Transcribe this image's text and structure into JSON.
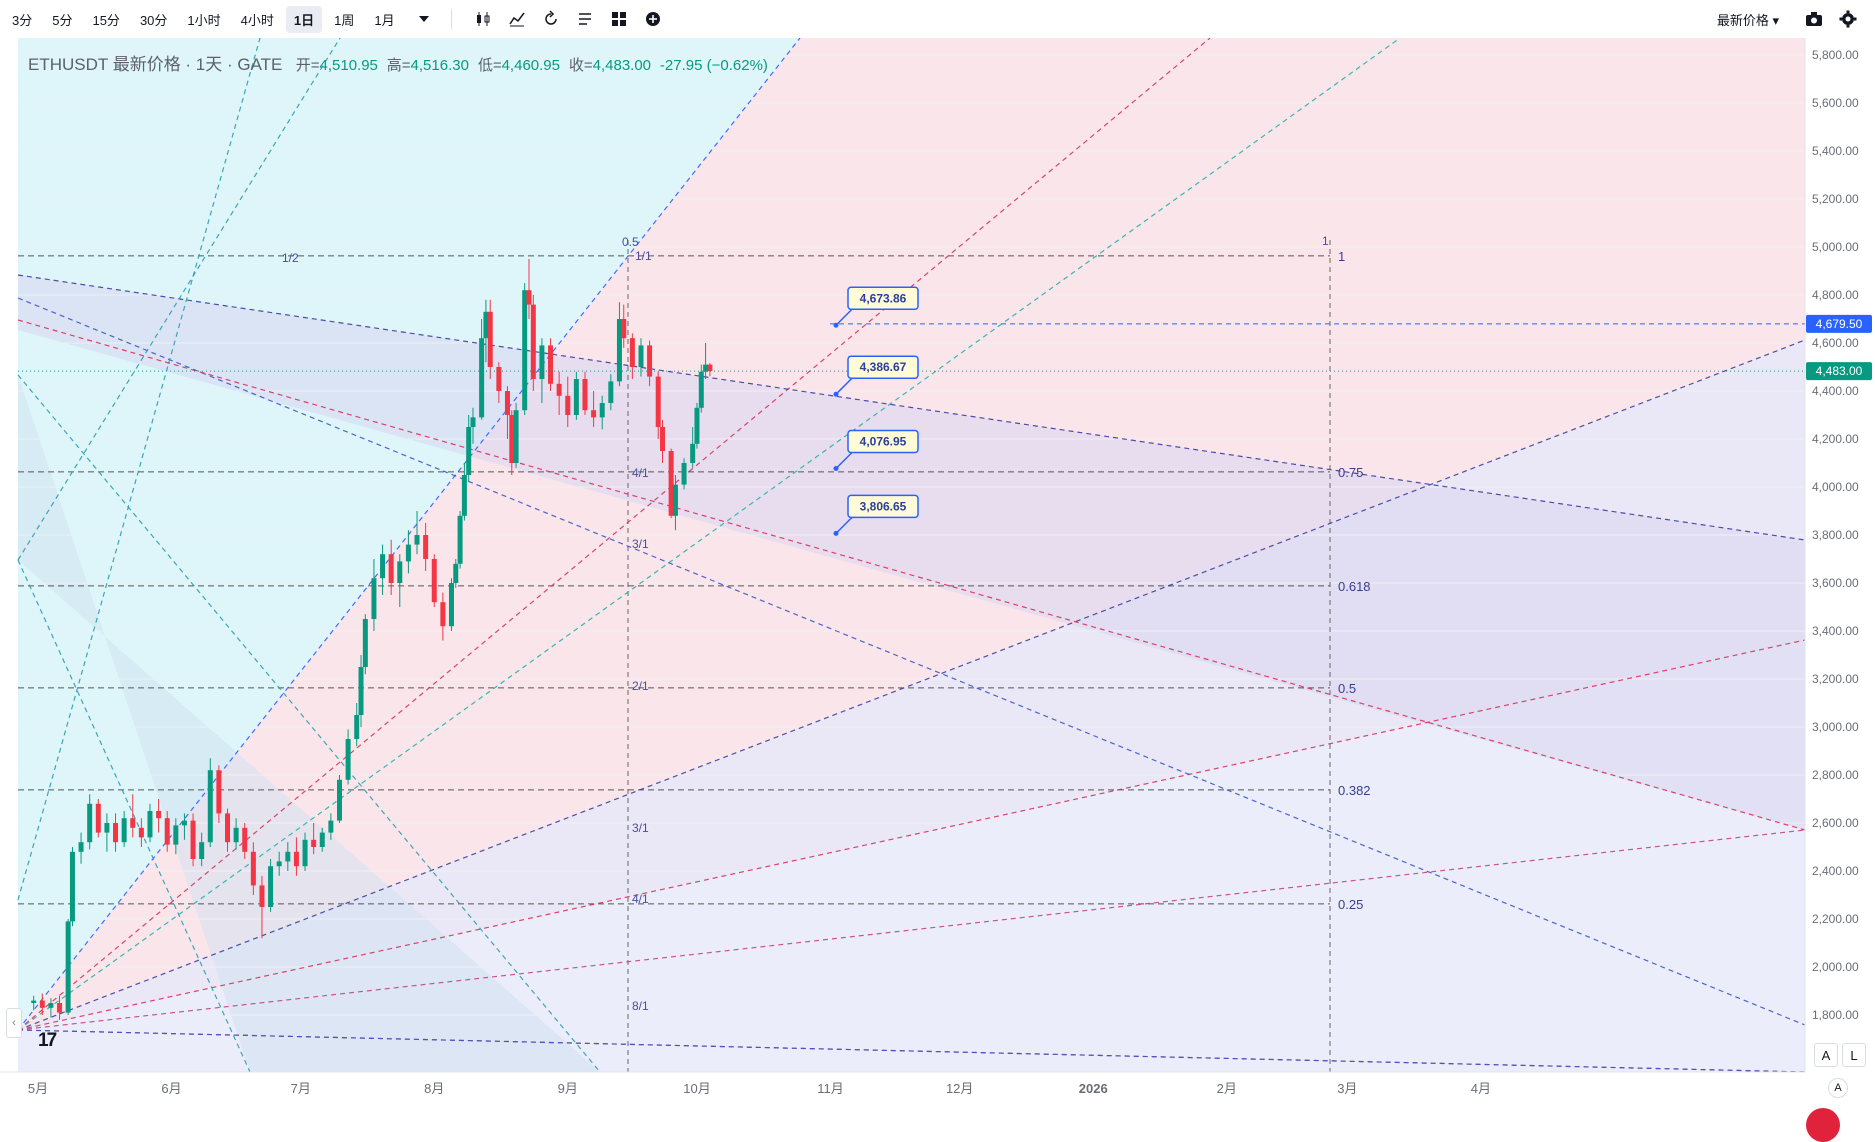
{
  "toolbar": {
    "timeframes": [
      "3分",
      "5分",
      "15分",
      "30分",
      "1小时",
      "4小时",
      "1日",
      "1周",
      "1月"
    ],
    "active_timeframe": "1日",
    "price_type": "最新价格 ▾"
  },
  "legend": {
    "symbol": "ETHUSDT 最新价格 · 1天 · GATE",
    "open_label": "开=",
    "open": "4,510.95",
    "high_label": "高=",
    "high": "4,516.30",
    "low_label": "低=",
    "low": "4,460.95",
    "close_label": "收=",
    "close": "4,483.00",
    "change": "-27.95 (−0.62%)"
  },
  "colors": {
    "up": "#089981",
    "down": "#f23645",
    "blue": "#2962ff",
    "accent_blue": "#3a5bd9"
  },
  "price_axis": [
    "5,800.00",
    "5,600.00",
    "5,400.00",
    "5,200.00",
    "5,000.00",
    "4,800.00",
    "4,600.00",
    "4,400.00",
    "4,200.00",
    "4,000.00",
    "3,800.00",
    "3,600.00",
    "3,400.00",
    "3,200.00",
    "3,000.00",
    "2,800.00",
    "2,600.00",
    "2,400.00",
    "2,200.00",
    "2,000.00",
    "1,800.00"
  ],
  "price_tags": [
    {
      "value": "4,679.50",
      "price": 4679.5,
      "color": "#2962ff"
    },
    {
      "value": "4,483.00",
      "price": 4483,
      "color": "#089981"
    }
  ],
  "time_axis": [
    "5月",
    "6月",
    "7月",
    "8月",
    "9月",
    "10月",
    "11月",
    "12月",
    "2026",
    "2月",
    "3月",
    "4月"
  ],
  "callouts": [
    {
      "text": "4,673.86",
      "price": 4673.86
    },
    {
      "text": "4,386.67",
      "price": 4386.67
    },
    {
      "text": "4,076.95",
      "price": 4076.95
    },
    {
      "text": "3,806.65",
      "price": 3806.65
    }
  ],
  "fib_levels": [
    {
      "label": "1",
      "price": 4963
    },
    {
      "label": "0.75",
      "price": 4063
    },
    {
      "label": "0.618",
      "price": 3588
    },
    {
      "label": "0.5",
      "price": 3163
    },
    {
      "label": "0.382",
      "price": 2738
    },
    {
      "label": "0.25",
      "price": 2263
    }
  ],
  "gann_labels": [
    "0.5",
    "1/2",
    "1/1",
    "4/1",
    "3/1",
    "2/1",
    "3/1",
    "4/1",
    "8/1",
    "1"
  ],
  "scale_buttons": [
    "A",
    "L"
  ],
  "bottom_button": "A",
  "chart_data": {
    "type": "candlestick",
    "symbol": "ETHUSDT",
    "interval": "1天",
    "ylim": [
      1600,
      5900
    ],
    "xlim": [
      "2025-04-29",
      "2026-04-30"
    ],
    "candles": [
      [
        "2025-04-30",
        1850,
        1880,
        1820,
        1860
      ],
      [
        "2025-05-02",
        1860,
        1890,
        1800,
        1830
      ],
      [
        "2025-05-04",
        1830,
        1870,
        1790,
        1850
      ],
      [
        "2025-05-06",
        1850,
        1880,
        1780,
        1810
      ],
      [
        "2025-05-08",
        1810,
        2200,
        1800,
        2190
      ],
      [
        "2025-05-09",
        2190,
        2500,
        2170,
        2480
      ],
      [
        "2025-05-11",
        2480,
        2560,
        2430,
        2520
      ],
      [
        "2025-05-13",
        2520,
        2720,
        2490,
        2680
      ],
      [
        "2025-05-15",
        2680,
        2700,
        2540,
        2560
      ],
      [
        "2025-05-17",
        2560,
        2640,
        2480,
        2600
      ],
      [
        "2025-05-19",
        2600,
        2640,
        2480,
        2520
      ],
      [
        "2025-05-21",
        2520,
        2650,
        2500,
        2620
      ],
      [
        "2025-05-23",
        2620,
        2720,
        2540,
        2580
      ],
      [
        "2025-05-25",
        2580,
        2620,
        2500,
        2540
      ],
      [
        "2025-05-27",
        2540,
        2680,
        2520,
        2650
      ],
      [
        "2025-05-29",
        2650,
        2700,
        2560,
        2620
      ],
      [
        "2025-05-31",
        2620,
        2650,
        2480,
        2510
      ],
      [
        "2025-06-02",
        2510,
        2620,
        2470,
        2590
      ],
      [
        "2025-06-04",
        2590,
        2640,
        2530,
        2610
      ],
      [
        "2025-06-06",
        2610,
        2640,
        2420,
        2450
      ],
      [
        "2025-06-08",
        2450,
        2560,
        2420,
        2520
      ],
      [
        "2025-06-10",
        2520,
        2870,
        2500,
        2820
      ],
      [
        "2025-06-12",
        2820,
        2840,
        2600,
        2640
      ],
      [
        "2025-06-14",
        2640,
        2660,
        2480,
        2520
      ],
      [
        "2025-06-16",
        2520,
        2620,
        2490,
        2580
      ],
      [
        "2025-06-18",
        2580,
        2600,
        2450,
        2480
      ],
      [
        "2025-06-20",
        2480,
        2520,
        2300,
        2340
      ],
      [
        "2025-06-22",
        2340,
        2380,
        2120,
        2250
      ],
      [
        "2025-06-24",
        2250,
        2450,
        2230,
        2420
      ],
      [
        "2025-06-26",
        2420,
        2480,
        2380,
        2440
      ],
      [
        "2025-06-28",
        2440,
        2520,
        2400,
        2480
      ],
      [
        "2025-06-30",
        2480,
        2540,
        2380,
        2420
      ],
      [
        "2025-07-02",
        2420,
        2560,
        2400,
        2530
      ],
      [
        "2025-07-04",
        2530,
        2600,
        2470,
        2500
      ],
      [
        "2025-07-06",
        2500,
        2580,
        2480,
        2560
      ],
      [
        "2025-07-08",
        2560,
        2640,
        2530,
        2610
      ],
      [
        "2025-07-10",
        2610,
        2800,
        2600,
        2780
      ],
      [
        "2025-07-12",
        2780,
        2990,
        2760,
        2950
      ],
      [
        "2025-07-14",
        2950,
        3100,
        2920,
        3050
      ],
      [
        "2025-07-15",
        3050,
        3300,
        3000,
        3250
      ],
      [
        "2025-07-16",
        3250,
        3470,
        3220,
        3450
      ],
      [
        "2025-07-18",
        3450,
        3700,
        3400,
        3620
      ],
      [
        "2025-07-20",
        3620,
        3760,
        3550,
        3720
      ],
      [
        "2025-07-22",
        3720,
        3780,
        3550,
        3600
      ],
      [
        "2025-07-24",
        3600,
        3720,
        3500,
        3690
      ],
      [
        "2025-07-26",
        3690,
        3820,
        3640,
        3760
      ],
      [
        "2025-07-28",
        3760,
        3900,
        3720,
        3800
      ],
      [
        "2025-07-30",
        3800,
        3850,
        3650,
        3700
      ],
      [
        "2025-08-01",
        3700,
        3720,
        3500,
        3520
      ],
      [
        "2025-08-03",
        3520,
        3560,
        3360,
        3420
      ],
      [
        "2025-08-05",
        3420,
        3620,
        3400,
        3600
      ],
      [
        "2025-08-06",
        3600,
        3700,
        3580,
        3680
      ],
      [
        "2025-08-07",
        3680,
        3900,
        3660,
        3880
      ],
      [
        "2025-08-08",
        3880,
        4100,
        3860,
        4050
      ],
      [
        "2025-08-09",
        4050,
        4300,
        4020,
        4250
      ],
      [
        "2025-08-10",
        4250,
        4330,
        4180,
        4290
      ],
      [
        "2025-08-12",
        4290,
        4700,
        4280,
        4620
      ],
      [
        "2025-08-13",
        4620,
        4780,
        4520,
        4730
      ],
      [
        "2025-08-14",
        4730,
        4780,
        4450,
        4500
      ],
      [
        "2025-08-16",
        4500,
        4520,
        4350,
        4400
      ],
      [
        "2025-08-18",
        4400,
        4420,
        4200,
        4300
      ],
      [
        "2025-08-19",
        4300,
        4320,
        4050,
        4100
      ],
      [
        "2025-08-20",
        4100,
        4350,
        4080,
        4320
      ],
      [
        "2025-08-22",
        4320,
        4850,
        4300,
        4820
      ],
      [
        "2025-08-23",
        4820,
        4950,
        4700,
        4760
      ],
      [
        "2025-08-24",
        4760,
        4800,
        4400,
        4450
      ],
      [
        "2025-08-26",
        4450,
        4620,
        4350,
        4590
      ],
      [
        "2025-08-28",
        4590,
        4620,
        4400,
        4430
      ],
      [
        "2025-08-30",
        4430,
        4480,
        4300,
        4380
      ],
      [
        "2025-09-01",
        4380,
        4460,
        4250,
        4300
      ],
      [
        "2025-09-03",
        4300,
        4480,
        4280,
        4450
      ],
      [
        "2025-09-05",
        4450,
        4480,
        4300,
        4320
      ],
      [
        "2025-09-07",
        4320,
        4400,
        4250,
        4290
      ],
      [
        "2025-09-09",
        4290,
        4380,
        4240,
        4350
      ],
      [
        "2025-09-11",
        4350,
        4470,
        4320,
        4440
      ],
      [
        "2025-09-13",
        4440,
        4770,
        4420,
        4700
      ],
      [
        "2025-09-14",
        4700,
        4760,
        4580,
        4620
      ],
      [
        "2025-09-16",
        4620,
        4640,
        4450,
        4500
      ],
      [
        "2025-09-18",
        4500,
        4620,
        4460,
        4590
      ],
      [
        "2025-09-20",
        4590,
        4610,
        4420,
        4460
      ],
      [
        "2025-09-22",
        4460,
        4480,
        4200,
        4250
      ],
      [
        "2025-09-23",
        4250,
        4280,
        4100,
        4150
      ],
      [
        "2025-09-25",
        4150,
        4160,
        3870,
        3880
      ],
      [
        "2025-09-26",
        3880,
        4050,
        3820,
        4010
      ],
      [
        "2025-09-28",
        4010,
        4120,
        3990,
        4100
      ],
      [
        "2025-09-30",
        4100,
        4250,
        4080,
        4180
      ],
      [
        "2025-10-01",
        4180,
        4350,
        4160,
        4330
      ],
      [
        "2025-10-02",
        4330,
        4510,
        4310,
        4480
      ],
      [
        "2025-10-03",
        4480,
        4600,
        4450,
        4510
      ],
      [
        "2025-10-04",
        4510,
        4516,
        4461,
        4483
      ]
    ]
  }
}
